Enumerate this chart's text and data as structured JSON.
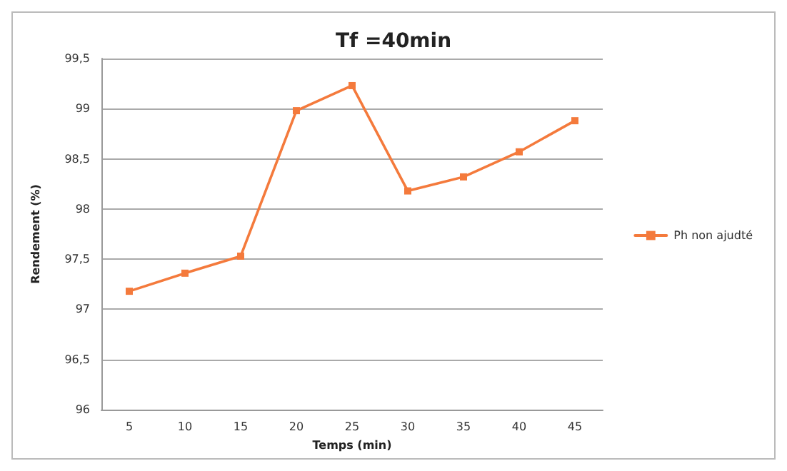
{
  "chart_data": {
    "type": "line",
    "title": "Tf =40min",
    "xlabel": "Temps (min)",
    "ylabel": "Rendement (%)",
    "categories": [
      "5",
      "10",
      "15",
      "20",
      "25",
      "30",
      "35",
      "40",
      "45"
    ],
    "series": [
      {
        "name": "Ph non ajudté",
        "color": "#f47a3c",
        "values": [
          97.18,
          97.36,
          97.53,
          98.98,
          99.23,
          98.18,
          98.32,
          98.57,
          98.88
        ]
      }
    ],
    "ylim": [
      96,
      99.5
    ],
    "yticks": [
      {
        "value": 96,
        "label": "96"
      },
      {
        "value": 96.5,
        "label": "96,5"
      },
      {
        "value": 97,
        "label": "97"
      },
      {
        "value": 97.5,
        "label": "97,5"
      },
      {
        "value": 98,
        "label": "98"
      },
      {
        "value": 98.5,
        "label": "98,5"
      },
      {
        "value": 99,
        "label": "99"
      },
      {
        "value": 99.5,
        "label": "99,5"
      }
    ],
    "grid": "y",
    "legend": "right",
    "marker": "square",
    "line_style": "solid"
  }
}
